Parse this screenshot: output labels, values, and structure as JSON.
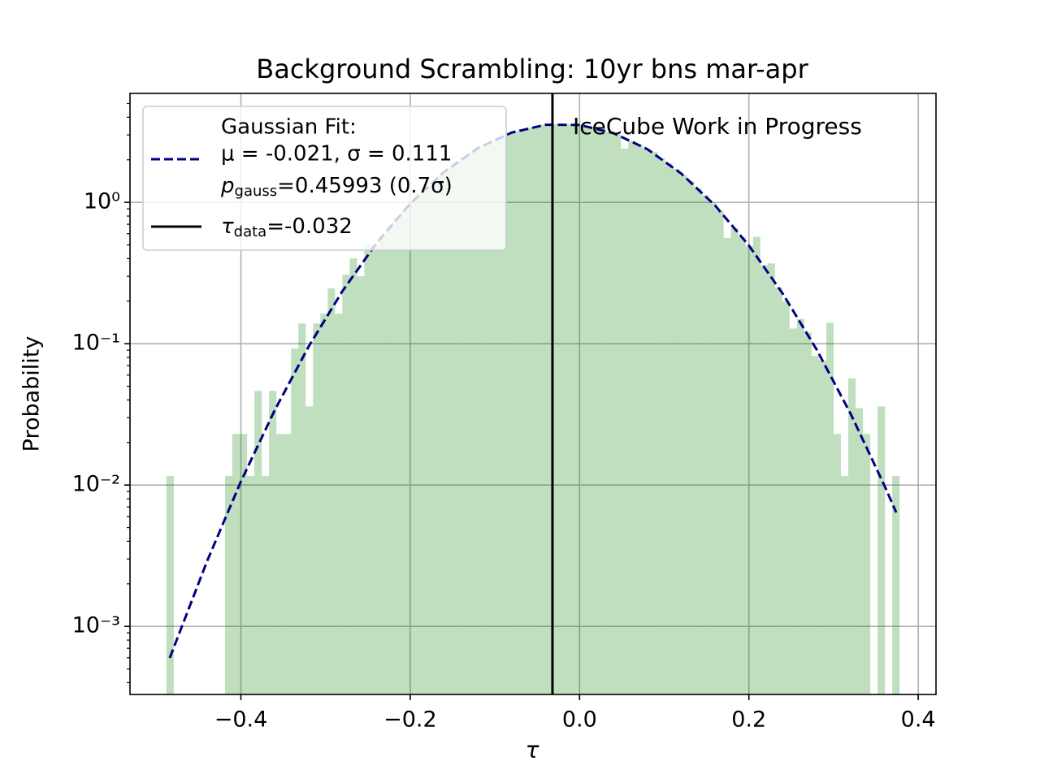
{
  "chart_data": {
    "type": "histogram",
    "title": "Background Scrambling: 10yr bns mar-apr",
    "xlabel": "τ",
    "ylabel": "Probability",
    "yscale": "log",
    "grid": true,
    "legend": "upper left",
    "xlim": [
      -0.531,
      0.421
    ],
    "ylim": [
      0.00033,
      5.9
    ],
    "xticks": [
      {
        "value": -0.4,
        "label": "−0.4"
      },
      {
        "value": -0.2,
        "label": "−0.2"
      },
      {
        "value": 0,
        "label": "0.0"
      },
      0.2,
      0.4
    ],
    "yticks": [
      {
        "value": 0.001,
        "label": "10⁻³"
      },
      {
        "value": 0.01,
        "label": "10⁻²"
      },
      {
        "value": 0.1,
        "label": "10⁻¹"
      },
      {
        "value": 1,
        "label": "10⁰"
      }
    ],
    "yminorticks": [
      0.0004,
      0.0005,
      0.0006,
      0.0007,
      0.0008,
      0.0009,
      0.002,
      0.003,
      0.004,
      0.005,
      0.006,
      0.007,
      0.008,
      0.009,
      0.02,
      0.03,
      0.04,
      0.05,
      0.06,
      0.07,
      0.08,
      0.09,
      0.2,
      0.3,
      0.4,
      0.5,
      0.6,
      0.7,
      0.8,
      0.9,
      2,
      3,
      4,
      5
    ],
    "color": "green",
    "alpha": 0.25,
    "bins": [
      -0.488,
      -0.4793,
      -0.4707,
      -0.462,
      -0.4534,
      -0.4447,
      -0.436,
      -0.4274,
      -0.4187,
      -0.4101,
      -0.4014,
      -0.3927,
      -0.3841,
      -0.3754,
      -0.3668,
      -0.3581,
      -0.3494,
      -0.3408,
      -0.3321,
      -0.3235,
      -0.3148,
      -0.3061,
      -0.2975,
      -0.2888,
      -0.2802,
      -0.2715,
      -0.2628,
      -0.2542,
      -0.2455,
      -0.2369,
      -0.2282,
      -0.2195,
      -0.2109,
      -0.2022,
      -0.1936,
      -0.1849,
      -0.1762,
      -0.1676,
      -0.1589,
      -0.1503,
      -0.1416,
      -0.1329,
      -0.1243,
      -0.1156,
      -0.107,
      -0.0983,
      -0.0896,
      -0.081,
      -0.0723,
      -0.0637,
      -0.055,
      -0.0463,
      -0.0377,
      -0.029,
      -0.0204,
      -0.0117,
      -0.003,
      0.0056,
      0.0143,
      0.0229,
      0.0316,
      0.0403,
      0.0489,
      0.0576,
      0.0662,
      0.0749,
      0.0836,
      0.0922,
      0.1009,
      0.1095,
      0.1182,
      0.1269,
      0.1355,
      0.1442,
      0.1528,
      0.1615,
      0.1702,
      0.1788,
      0.1875,
      0.1961,
      0.2048,
      0.2135,
      0.2221,
      0.2308,
      0.2394,
      0.2481,
      0.2568,
      0.2654,
      0.2741,
      0.2827,
      0.2914,
      0.3001,
      0.3087,
      0.3174,
      0.326,
      0.3347,
      0.3434,
      0.352,
      0.3607,
      0.3693,
      0.378
    ],
    "values": [
      0.0116,
      0,
      0,
      0,
      0,
      0,
      0,
      0,
      0.0116,
      0.023,
      0.023,
      0.0116,
      0.0464,
      0.0116,
      0.0464,
      0.023,
      0.023,
      0.0924,
      0.139,
      0.036,
      0.139,
      0.163,
      0.246,
      0.163,
      0.308,
      0.401,
      0.3,
      0.509,
      0.5,
      0.58,
      0.68,
      0.78,
      0.89,
      1.01,
      1.14,
      1.28,
      1.42,
      1.58,
      1.74,
      1.91,
      2.08,
      2.25,
      2.42,
      2.58,
      2.74,
      2.9,
      3.04,
      3.17,
      3.29,
      3.39,
      3.47,
      3.53,
      3.57,
      3.59,
      3.59,
      3.57,
      3.52,
      3.46,
      3.37,
      3.27,
      3.15,
      3.02,
      2.4,
      2.72,
      2.56,
      2.39,
      2.27,
      2.05,
      1.89,
      1.72,
      1.56,
      1.41,
      1.26,
      1.12,
      0.99,
      0.87,
      0.56,
      0.66,
      0.57,
      0.49,
      0.57,
      0.36,
      0.37,
      0.25,
      0.2,
      0.128,
      0.15,
      0.12,
      0.082,
      0.076,
      0.141,
      0.023,
      0.0116,
      0.057,
      0.035,
      0.023,
      0,
      0.036,
      0,
      0.0116
    ],
    "fit": {
      "color": "navy",
      "label": [
        "Gaussian Fit:",
        "μ = -0.021, σ = 0.111",
        [
          "p",
          "gauss",
          "=0.45993 (0.7σ)"
        ]
      ],
      "x": [
        -0.484,
        -0.44,
        -0.4,
        -0.36,
        -0.32,
        -0.28,
        -0.24,
        -0.2,
        -0.16,
        -0.12,
        -0.08,
        -0.04,
        0,
        0.04,
        0.08,
        0.12,
        0.16,
        0.2,
        0.24,
        0.28,
        0.32,
        0.36,
        0.374
      ],
      "y": [
        0.000599,
        0.00289,
        0.0106,
        0.0339,
        0.0955,
        0.236,
        0.513,
        0.979,
        1.64,
        2.42,
        3.12,
        3.54,
        3.53,
        3.09,
        2.38,
        1.6,
        0.951,
        0.495,
        0.226,
        0.0909,
        0.0321,
        0.00994,
        0.0064
      ]
    },
    "vline": {
      "x": -0.032,
      "color": "black",
      "label": [
        "τ",
        "data",
        "=-0.032"
      ]
    },
    "annotation": {
      "text": "IceCube Work in Progress",
      "color": "red"
    }
  }
}
